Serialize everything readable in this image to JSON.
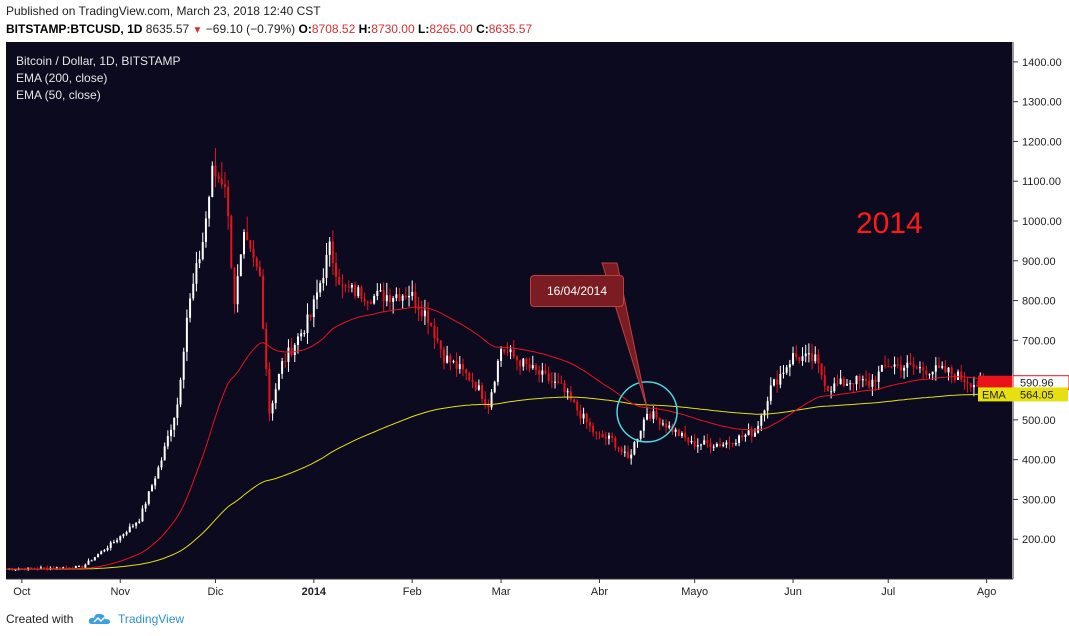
{
  "header": {
    "published": "Published on TradingView.com, March 23, 2018 12:40 CST",
    "symbol": "BITSTAMP:BTCUSD, 1D",
    "last": "8635.57",
    "change": "−69.10 (−0.79%)",
    "open_label": "O:",
    "open": "8708.52",
    "high_label": "H:",
    "high": "8730.00",
    "low_label": "L:",
    "low": "8265.00",
    "close_label": "C:",
    "close": "8635.57"
  },
  "legend": {
    "title": "Bitcoin / Dollar, 1D, BITSTAMP",
    "ema200": "EMA (200, close)",
    "ema50": "EMA (50, close)"
  },
  "annotations": {
    "year": "2014",
    "date_callout": "16/04/2014"
  },
  "footer": {
    "created_with": "Created with",
    "brand": "TradingView"
  },
  "colors": {
    "background": "#0b0a1e",
    "candle_up": "#ffffff",
    "candle_down": "#e8141a",
    "ema50": "#e8141a",
    "ema200": "#e6e010",
    "axis_text": "#e6e6e6",
    "highlight_circle": "#4fd8e0"
  },
  "chart_data": {
    "type": "candlestick",
    "x_axis": "date",
    "x_range": [
      "2013-09-26",
      "2014-08-09"
    ],
    "x_ticks": [
      {
        "date": "2013-10-01",
        "label": "Oct"
      },
      {
        "date": "2013-11-01",
        "label": "Nov"
      },
      {
        "date": "2013-12-01",
        "label": "Dic"
      },
      {
        "date": "2014-01-01",
        "label": "2014"
      },
      {
        "date": "2014-02-01",
        "label": "Feb"
      },
      {
        "date": "2014-03-01",
        "label": "Mar"
      },
      {
        "date": "2014-04-01",
        "label": "Abr"
      },
      {
        "date": "2014-05-01",
        "label": "Mayo"
      },
      {
        "date": "2014-06-01",
        "label": "Jun"
      },
      {
        "date": "2014-07-01",
        "label": "Jul"
      },
      {
        "date": "2014-08-01",
        "label": "Ago"
      }
    ],
    "y_ticks": [
      "1400.00",
      "1300.00",
      "1200.00",
      "1100.00",
      "1000.00",
      "900.00",
      "800.00",
      "700.00",
      "600.00",
      "500.00",
      "400.00",
      "300.00",
      "200.00"
    ],
    "ylim": [
      100,
      1450
    ],
    "price_anchors": [
      {
        "date": "2013-09-26",
        "close": 125
      },
      {
        "date": "2013-10-10",
        "close": 128
      },
      {
        "date": "2013-10-20",
        "close": 130
      },
      {
        "date": "2013-10-31",
        "close": 200
      },
      {
        "date": "2013-11-07",
        "close": 250
      },
      {
        "date": "2013-11-14",
        "close": 400
      },
      {
        "date": "2013-11-19",
        "close": 540
      },
      {
        "date": "2013-11-22",
        "close": 760
      },
      {
        "date": "2013-11-27",
        "close": 950
      },
      {
        "date": "2013-11-30",
        "close": 1120
      },
      {
        "date": "2013-12-04",
        "close": 1100
      },
      {
        "date": "2013-12-07",
        "close": 800
      },
      {
        "date": "2013-12-10",
        "close": 950
      },
      {
        "date": "2013-12-15",
        "close": 860
      },
      {
        "date": "2013-12-18",
        "close": 520
      },
      {
        "date": "2013-12-22",
        "close": 640
      },
      {
        "date": "2013-12-31",
        "close": 760
      },
      {
        "date": "2014-01-06",
        "close": 930
      },
      {
        "date": "2014-01-10",
        "close": 830
      },
      {
        "date": "2014-01-20",
        "close": 810
      },
      {
        "date": "2014-01-31",
        "close": 820
      },
      {
        "date": "2014-02-06",
        "close": 760
      },
      {
        "date": "2014-02-11",
        "close": 660
      },
      {
        "date": "2014-02-20",
        "close": 600
      },
      {
        "date": "2014-02-25",
        "close": 540
      },
      {
        "date": "2014-03-01",
        "close": 680
      },
      {
        "date": "2014-03-10",
        "close": 630
      },
      {
        "date": "2014-03-20",
        "close": 580
      },
      {
        "date": "2014-03-31",
        "close": 460
      },
      {
        "date": "2014-04-05",
        "close": 450
      },
      {
        "date": "2014-04-10",
        "close": 400
      },
      {
        "date": "2014-04-16",
        "close": 520
      },
      {
        "date": "2014-04-20",
        "close": 500
      },
      {
        "date": "2014-04-30",
        "close": 440
      },
      {
        "date": "2014-05-10",
        "close": 440
      },
      {
        "date": "2014-05-20",
        "close": 470
      },
      {
        "date": "2014-05-25",
        "close": 580
      },
      {
        "date": "2014-06-01",
        "close": 660
      },
      {
        "date": "2014-06-08",
        "close": 650
      },
      {
        "date": "2014-06-12",
        "close": 580
      },
      {
        "date": "2014-06-20",
        "close": 600
      },
      {
        "date": "2014-06-25",
        "close": 590
      },
      {
        "date": "2014-07-01",
        "close": 640
      },
      {
        "date": "2014-07-10",
        "close": 630
      },
      {
        "date": "2014-07-20",
        "close": 620
      },
      {
        "date": "2014-07-30",
        "close": 585
      },
      {
        "date": "2014-08-06",
        "close": 590.96
      }
    ],
    "last_price_label": "590.96",
    "ema_price_label": "564.05",
    "ema_tag": "EMA",
    "highlight_date": "2014-04-16",
    "highlight_price": 520
  }
}
